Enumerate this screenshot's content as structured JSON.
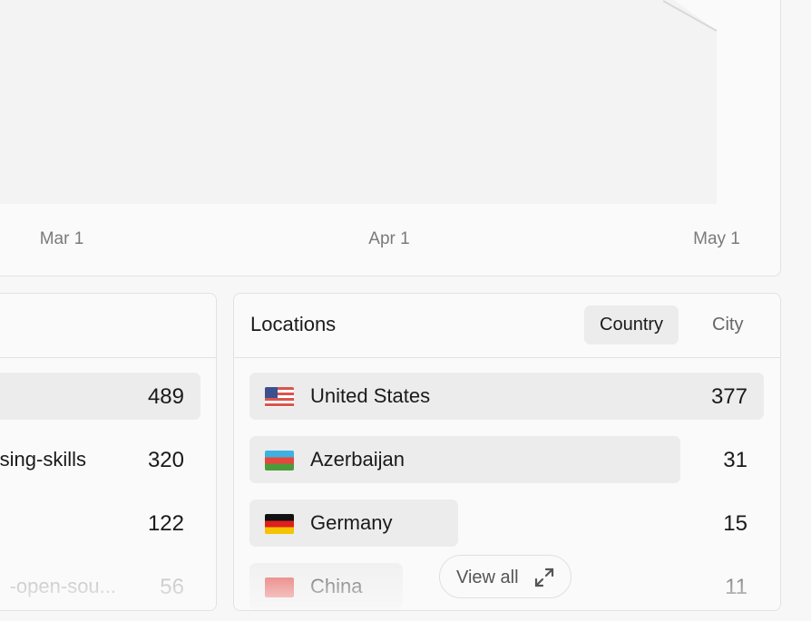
{
  "chart": {
    "type": "area",
    "x_ticks": [
      "Mar 1",
      "Apr 1",
      "May 1"
    ]
  },
  "left_list": {
    "rows": [
      {
        "label": "",
        "value": "489"
      },
      {
        "label": "sing-skills",
        "value": "320"
      },
      {
        "label": "",
        "value": "122"
      },
      {
        "label": "-open-sou...",
        "value": "56"
      }
    ]
  },
  "locations": {
    "title": "Locations",
    "tabs": [
      {
        "label": "Country",
        "active": true
      },
      {
        "label": "City",
        "active": false
      }
    ],
    "rows": [
      {
        "flag": "us-flag",
        "label": "United States",
        "value": "377"
      },
      {
        "flag": "az-flag",
        "label": "Azerbaijan",
        "value": "31"
      },
      {
        "flag": "de-flag",
        "label": "Germany",
        "value": "15"
      },
      {
        "flag": "cn-flag",
        "label": "China",
        "value": "11"
      }
    ],
    "view_all": "View all",
    "view_all_icon": "expand-icon"
  },
  "colors": {
    "bar": "#ececec",
    "area": "#f3f3f3"
  }
}
